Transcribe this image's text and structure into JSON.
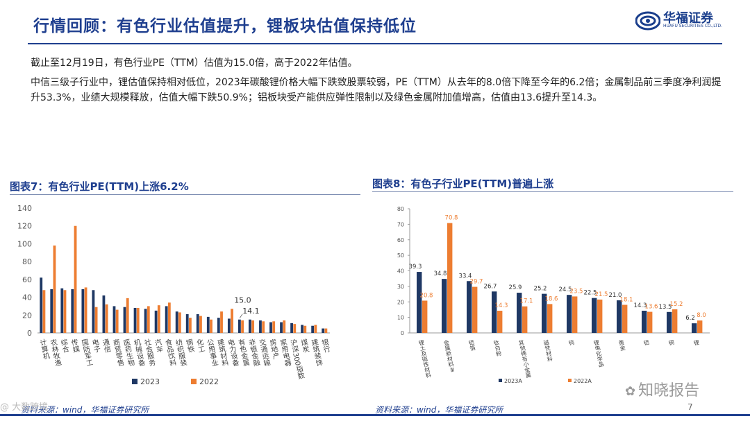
{
  "header": {
    "title": "行情回顾：有色行业估值提升，锂板块估值保持低位",
    "logo_name": "华福证券",
    "logo_sub": "HUAFU SECURITIES CO.,LTD."
  },
  "body": {
    "p1": "截止至12月19日，有色行业PE（TTM）估值为15.0倍，高于2022年估值。",
    "p2": "中信三级子行业中，锂估值保持相对低位，2023年碳酸锂价格大幅下跌致股票较弱，PE（TTM）从去年的8.0倍下降至今年的6.2倍；金属制品前三季度净利润提升53.3%，业绩大规模释放，估值大幅下跌50.9%；铝板块受产能供应弹性限制以及绿色金属附加值增高，估值由13.6提升至14.3。"
  },
  "fig7": {
    "title": "图表7：有色行业PE(TTM)上涨6.2%",
    "source": "资料来源：wind，华福证券研究所"
  },
  "fig8": {
    "title": "图表8：有色子行业PE(TTM)普遍上涨",
    "source": "资料来源：wind，华福证券研究所"
  },
  "page_number": "7",
  "watermarks": {
    "left": "@ 大数跨境",
    "right": "知晓报告"
  },
  "colors": {
    "navy": "#1f3864",
    "orange": "#ed7d31",
    "title_blue": "#1f3f8f"
  },
  "chart_data": [
    {
      "type": "bar",
      "categories": [
        "计算机",
        "农林牧渔",
        "综合",
        "传媒",
        "国防军工",
        "电子",
        "通信",
        "商贸零售",
        "医药生物",
        "机械设备",
        "社会服务",
        "汽车",
        "食品饮料",
        "纺织服装",
        "钢铁",
        "化工",
        "公用事业",
        "建筑材料",
        "电力设备",
        "有色金属",
        "非银金融",
        "交通运输",
        "房地产",
        "家用电器",
        "沪深300指数",
        "煤炭",
        "建筑装饰",
        "银行"
      ],
      "series": [
        {
          "name": "2023",
          "values": [
            62,
            49,
            50,
            49,
            49,
            48,
            42,
            30,
            29,
            28,
            27,
            25,
            30,
            24,
            21,
            21,
            18,
            17,
            16,
            15,
            15,
            14,
            12,
            12,
            11,
            9,
            8,
            5
          ]
        },
        {
          "name": "2022",
          "values": [
            48,
            98,
            48,
            120,
            51,
            29,
            32,
            26,
            39,
            28,
            30,
            31,
            34,
            23,
            17,
            19,
            15,
            24,
            27,
            14.1,
            14,
            13,
            13,
            14,
            10,
            8,
            9,
            5
          ]
        }
      ],
      "ylim": [
        0,
        140
      ],
      "yticks": [
        0,
        20,
        40,
        60,
        80,
        100,
        120,
        140
      ],
      "annotations": [
        {
          "label": "15.0",
          "category": "有色金属",
          "value": 15.0
        },
        {
          "label": "14.1",
          "category": "有色金属",
          "value": 14.1
        }
      ],
      "legend": "bottom"
    },
    {
      "type": "bar",
      "categories": [
        "锂土及磁性材料",
        "金属新材料Ⅲ",
        "铝箔",
        "钛白粉",
        "其他稀有小金属",
        "磁性材料",
        "钨",
        "锂电化学品",
        "黄金",
        "铝",
        "铜",
        "锂"
      ],
      "series": [
        {
          "name": "2023A",
          "values": [
            39.3,
            34.8,
            33.4,
            26.7,
            25.9,
            25.2,
            24.5,
            22.5,
            21.0,
            14.3,
            13.5,
            6.2
          ],
          "labels": [
            "39.3",
            "34.8",
            "33.4",
            "26.7",
            "25.9",
            "25.2",
            "24.5",
            "22.5",
            "21.0",
            "14.3",
            "13.5",
            "6.2"
          ]
        },
        {
          "name": "2022A",
          "values": [
            20.8,
            70.8,
            29.7,
            14.3,
            17.1,
            18.6,
            23.5,
            21.5,
            18.1,
            13.6,
            15.2,
            8.0
          ],
          "labels": [
            "20.8",
            "70.8",
            "29.7",
            "14.3",
            "17.1",
            "18.6",
            "23.5",
            "21.5",
            "18.1",
            "13.6",
            "15.2",
            "8.0"
          ]
        }
      ],
      "ylim": [
        0,
        80
      ],
      "yticks": [
        0,
        10,
        20,
        30,
        40,
        50,
        60,
        70,
        80
      ],
      "legend": "bottom"
    }
  ]
}
